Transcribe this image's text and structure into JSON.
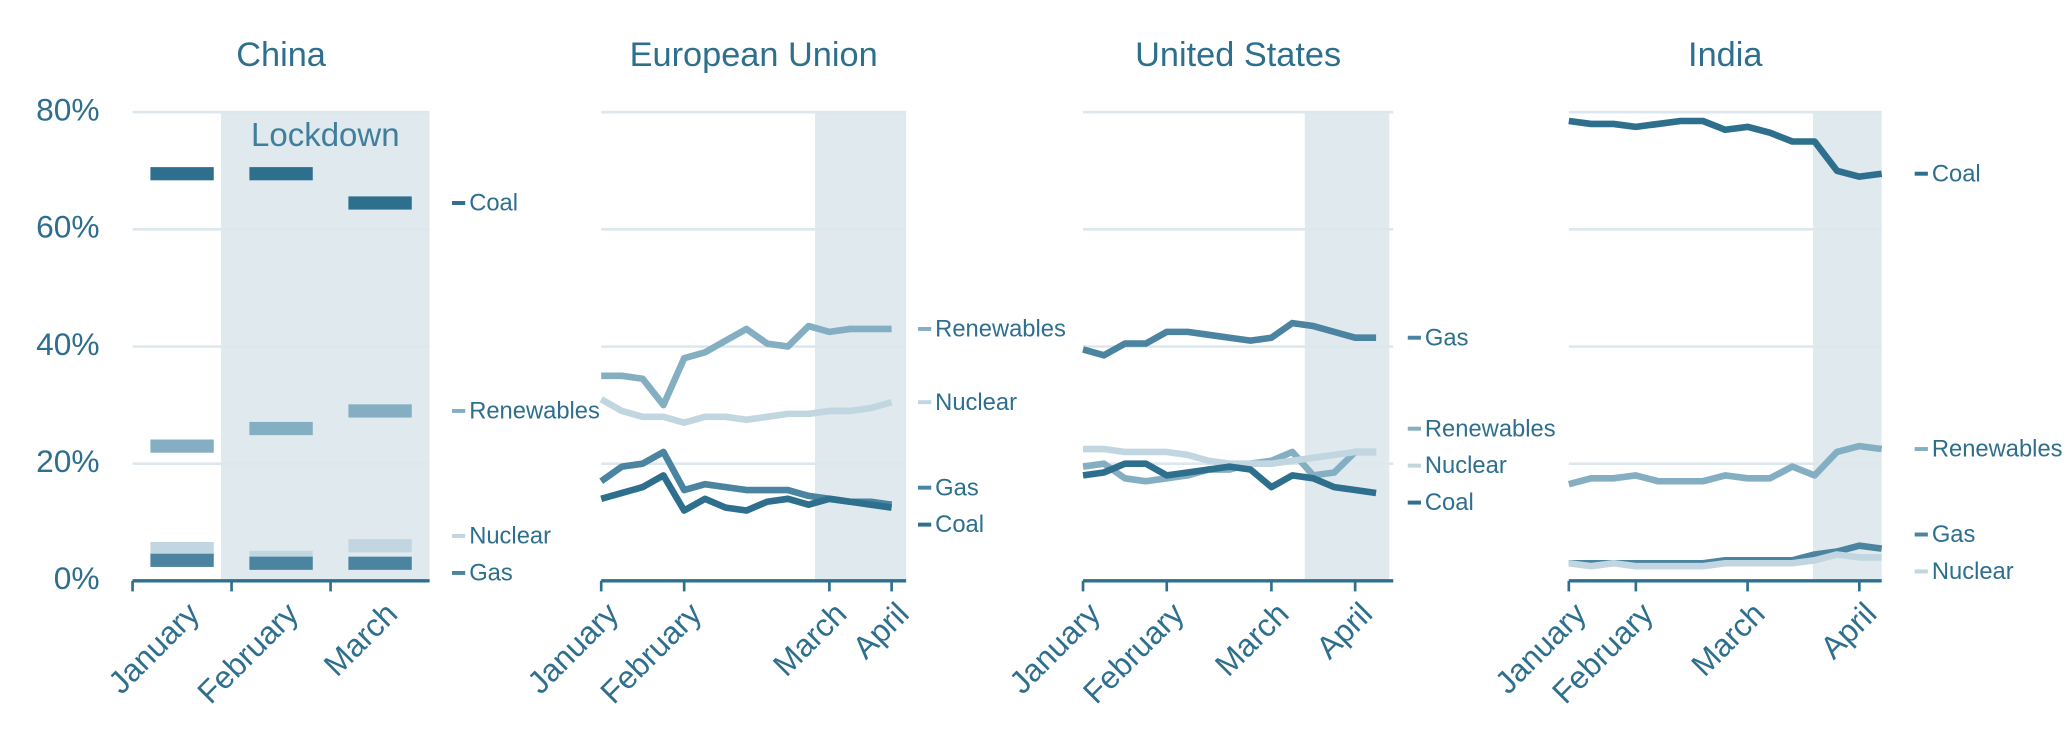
{
  "chart_data": [
    {
      "type": "dash",
      "title": "China",
      "annotation": "Lockdown",
      "categories": [
        "January",
        "February",
        "March"
      ],
      "ylim": [
        0,
        80
      ],
      "yticks": [
        {
          "value": 0,
          "label": "0%"
        },
        {
          "value": 20,
          "label": "20%"
        },
        {
          "value": 40,
          "label": "40%"
        },
        {
          "value": 60,
          "label": "60%"
        },
        {
          "value": 80,
          "label": "80%"
        }
      ],
      "series": [
        {
          "name": "Coal",
          "color": "#2e6f8e",
          "values": [
            69.5,
            69.5,
            64.5
          ]
        },
        {
          "name": "Renewables",
          "color": "#84aec2",
          "values": [
            23,
            26,
            29
          ]
        },
        {
          "name": "Nuclear",
          "color": "#c1d6e0",
          "values": [
            5.5,
            4,
            6
          ]
        },
        {
          "name": "Gas",
          "color": "#4a84a0",
          "values": [
            3.5,
            3,
            3
          ]
        }
      ]
    },
    {
      "type": "line",
      "title": "European  Union",
      "categories": [
        "January",
        null,
        null,
        null,
        "February",
        null,
        null,
        null,
        null,
        null,
        null,
        "March",
        null,
        null,
        "April"
      ],
      "ylim": [
        0,
        80
      ],
      "yticks": [
        0,
        20,
        40,
        60,
        80
      ],
      "series": [
        {
          "name": "Renewables",
          "color": "#84aec2",
          "values": [
            35,
            35,
            34.5,
            30,
            38,
            39,
            41,
            43,
            40.5,
            40,
            43.5,
            42.5,
            43,
            43,
            43
          ]
        },
        {
          "name": "Nuclear",
          "color": "#c1d6e0",
          "values": [
            31,
            29,
            28,
            28,
            27,
            28,
            28,
            27.5,
            28,
            28.5,
            28.5,
            29,
            29,
            29.5,
            30.5
          ]
        },
        {
          "name": "Gas",
          "color": "#4a84a0",
          "values": [
            17,
            19.5,
            20,
            22,
            15.5,
            16.5,
            16,
            15.5,
            15.5,
            15.5,
            14.5,
            14,
            13.5,
            13.5,
            13
          ]
        },
        {
          "name": "Coal",
          "color": "#2e6f8e",
          "values": [
            14,
            15,
            16,
            18,
            12,
            14,
            12.5,
            12,
            13.5,
            14,
            13,
            14,
            13.5,
            13,
            12.5
          ]
        }
      ]
    },
    {
      "type": "line",
      "title": "United States",
      "categories": [
        "January",
        null,
        null,
        null,
        "February",
        null,
        null,
        null,
        null,
        "March",
        null,
        null,
        null,
        "April",
        null
      ],
      "ylim": [
        0,
        80
      ],
      "yticks": [
        0,
        20,
        40,
        60,
        80
      ],
      "series": [
        {
          "name": "Gas",
          "color": "#4a84a0",
          "values": [
            39.5,
            38.5,
            40.5,
            40.5,
            42.5,
            42.5,
            42,
            41.5,
            41,
            41.5,
            44,
            43.5,
            42.5,
            41.5,
            41.5
          ]
        },
        {
          "name": "Renewables",
          "color": "#84aec2",
          "values": [
            19.5,
            20,
            17.5,
            17,
            17.5,
            18,
            19,
            19,
            20,
            20.5,
            22,
            18,
            18.5,
            22,
            22
          ]
        },
        {
          "name": "Nuclear",
          "color": "#c1d6e0",
          "values": [
            22.5,
            22.5,
            22,
            22,
            22,
            21.5,
            20.5,
            20,
            20,
            20,
            20.5,
            21,
            21.5,
            22,
            22
          ]
        },
        {
          "name": "Coal",
          "color": "#2e6f8e",
          "values": [
            18,
            18.5,
            20,
            20,
            18,
            18.5,
            19,
            19.5,
            19,
            16,
            18,
            17.5,
            16,
            15.5,
            15
          ]
        }
      ]
    },
    {
      "type": "line",
      "title": "India",
      "categories": [
        "January",
        null,
        null,
        "February",
        null,
        null,
        null,
        null,
        "March",
        null,
        null,
        null,
        null,
        "April",
        null
      ],
      "ylim": [
        0,
        80
      ],
      "yticks": [
        0,
        20,
        40,
        60,
        80
      ],
      "series": [
        {
          "name": "Coal",
          "color": "#2e6f8e",
          "values": [
            78.5,
            78,
            78,
            77.5,
            78,
            78.5,
            78.5,
            77,
            77.5,
            76.5,
            75,
            75,
            70,
            69,
            69.5
          ]
        },
        {
          "name": "Renewables",
          "color": "#84aec2",
          "values": [
            16.5,
            17.5,
            17.5,
            18,
            17,
            17,
            17,
            18,
            17.5,
            17.5,
            19.5,
            18,
            22,
            23,
            22.5
          ]
        },
        {
          "name": "Gas",
          "color": "#4a84a0",
          "values": [
            3,
            3,
            3,
            3,
            3,
            3,
            3,
            3.5,
            3.5,
            3.5,
            3.5,
            4.5,
            5,
            6,
            5.5
          ]
        },
        {
          "name": "Nuclear",
          "color": "#c1d6e0",
          "values": [
            3,
            2.5,
            3,
            2.5,
            2.5,
            2.5,
            2.5,
            3,
            3,
            3,
            3,
            3.5,
            4.5,
            4,
            4
          ]
        }
      ]
    }
  ]
}
